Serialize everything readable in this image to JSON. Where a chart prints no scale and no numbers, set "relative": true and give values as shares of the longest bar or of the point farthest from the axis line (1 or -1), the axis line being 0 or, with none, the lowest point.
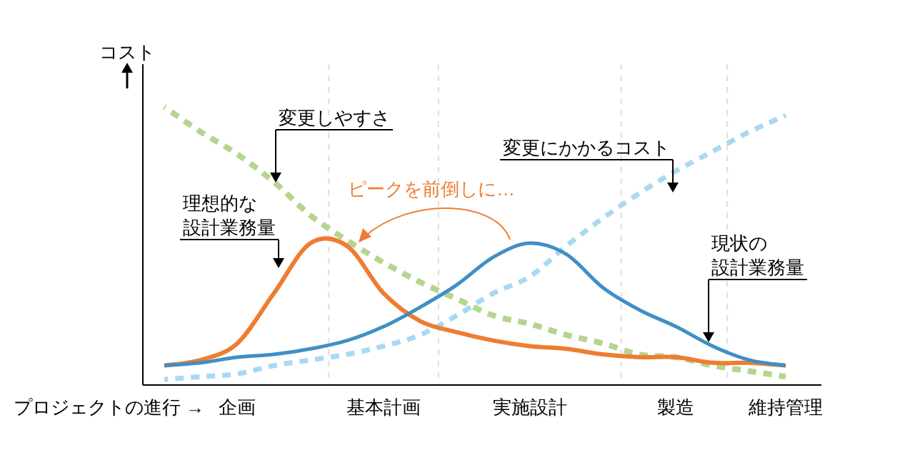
{
  "chart_data": {
    "type": "line",
    "relative": true,
    "xlabel": "プロジェクトの進行 →",
    "ylabel": "コスト",
    "categories": [
      null,
      null,
      "企画",
      null,
      null,
      null,
      "基本計画",
      null,
      null,
      null,
      "実施設計",
      null,
      null,
      null,
      "製造",
      null,
      null,
      "維持管理"
    ],
    "grid": false,
    "series": [
      {
        "color": "#b5d58e",
        "line_style": "dashed",
        "values": [
          1.0,
          0.91,
          0.83,
          0.73,
          0.61,
          0.52,
          0.44,
          0.37,
          0.31,
          0.25,
          0.22,
          0.18,
          0.15,
          0.11,
          0.1,
          0.07,
          0.05,
          0.03
        ]
      },
      {
        "color": "#a9d9f2",
        "line_style": "dashed",
        "values": [
          0.02,
          0.03,
          0.04,
          0.07,
          0.09,
          0.11,
          0.14,
          0.18,
          0.25,
          0.33,
          0.39,
          0.5,
          0.6,
          0.69,
          0.77,
          0.84,
          0.91,
          0.97
        ]
      },
      {
        "color": "#ee7d31",
        "line_style": "solid",
        "values": [
          0.07,
          0.09,
          0.15,
          0.33,
          0.51,
          0.5,
          0.33,
          0.23,
          0.19,
          0.16,
          0.14,
          0.13,
          0.11,
          0.1,
          0.1,
          0.08,
          0.08,
          0.07
        ]
      },
      {
        "color": "#3f8fc5",
        "line_style": "solid",
        "values": [
          0.07,
          0.08,
          0.1,
          0.11,
          0.13,
          0.16,
          0.21,
          0.28,
          0.36,
          0.46,
          0.51,
          0.47,
          0.35,
          0.27,
          0.21,
          0.14,
          0.09,
          0.07
        ]
      }
    ],
    "annotations": [
      "変更しやすさ",
      "変更にかかるコスト",
      "理想的な設計業務量",
      "現状の設計業務量",
      "ピークを前倒しに…"
    ]
  }
}
